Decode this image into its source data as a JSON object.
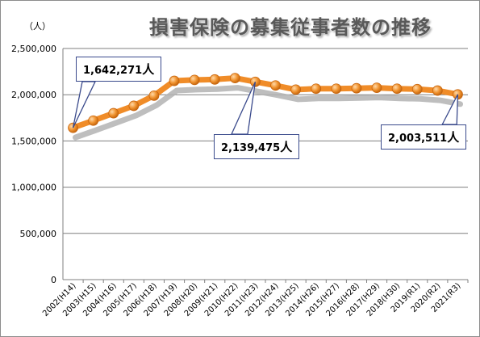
{
  "chart_data": {
    "type": "line",
    "title": "損害保険の募集従事者数の推移",
    "unit_label": "（人）",
    "ylim": [
      0,
      2500000
    ],
    "yticks": [
      0,
      500000,
      1000000,
      1500000,
      2000000,
      2500000
    ],
    "ytick_labels": [
      "0",
      "500,000",
      "1,000,000",
      "1,500,000",
      "2,000,000",
      "2,500,000"
    ],
    "grid": true,
    "categories": [
      "2002(H14)",
      "2003(H15)",
      "2004(H16)",
      "2005(H17)",
      "2006(H18)",
      "2007(H19)",
      "2008(H20)",
      "2009(H21)",
      "2010(H22)",
      "2011(H23)",
      "2012(H24)",
      "2013(H25)",
      "2014(H26)",
      "2015(H27)",
      "2016(H28)",
      "2017(H29)",
      "2018(H30)",
      "2019(R1)",
      "2020(R2)",
      "2021(R3)"
    ],
    "series": [
      {
        "color": "#f08c28",
        "values": [
          1642271,
          1720000,
          1800000,
          1880000,
          1990000,
          2150000,
          2160000,
          2165000,
          2180000,
          2139475,
          2100000,
          2055000,
          2065000,
          2065000,
          2070000,
          2075000,
          2065000,
          2060000,
          2045000,
          2003511
        ]
      }
    ],
    "annotations": [
      {
        "index": 0,
        "value": "1,642,271",
        "unit": "人"
      },
      {
        "index": 9,
        "value": "2,139,475",
        "unit": "人"
      },
      {
        "index": 19,
        "value": "2,003,511",
        "unit": "人"
      }
    ]
  }
}
